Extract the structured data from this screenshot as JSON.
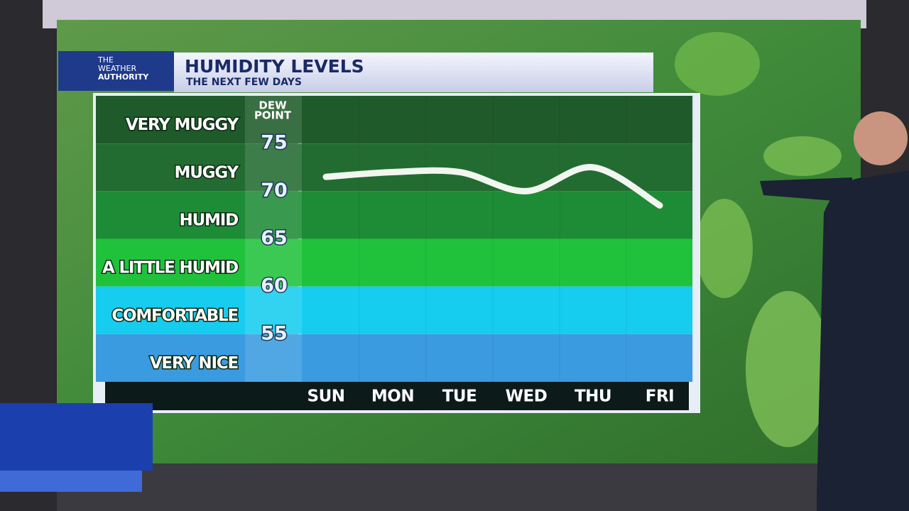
{
  "chart_data": {
    "type": "line",
    "title": "HUMIDITY LEVELS",
    "subtitle": "THE NEXT FEW DAYS",
    "brand": [
      "THE",
      "WEATHER",
      "AUTHORITY"
    ],
    "ylabel": [
      "DEW",
      "POINT"
    ],
    "categories": [
      "SUN",
      "MON",
      "TUE",
      "WED",
      "THU",
      "FRI"
    ],
    "series": [
      {
        "name": "Dew point",
        "color": "#f2f6f0",
        "values": [
          71.5,
          72,
          72,
          70,
          72.5,
          68.5
        ]
      }
    ],
    "ylim": [
      50,
      80
    ],
    "yticks": [
      55,
      60,
      65,
      70,
      75
    ],
    "bands": [
      {
        "label": "VERY MUGGY",
        "from": 75,
        "to": 80,
        "color": "#1f5a2a"
      },
      {
        "label": "MUGGY",
        "from": 70,
        "to": 75,
        "color": "#236c31"
      },
      {
        "label": "HUMID",
        "from": 65,
        "to": 70,
        "color": "#1e8b36"
      },
      {
        "label": "A LITTLE HUMID",
        "from": 60,
        "to": 65,
        "color": "#20c23c"
      },
      {
        "label": "COMFORTABLE",
        "from": 55,
        "to": 60,
        "color": "#16cdef"
      },
      {
        "label": "VERY NICE",
        "from": 50,
        "to": 55,
        "color": "#3a9be0"
      }
    ]
  }
}
